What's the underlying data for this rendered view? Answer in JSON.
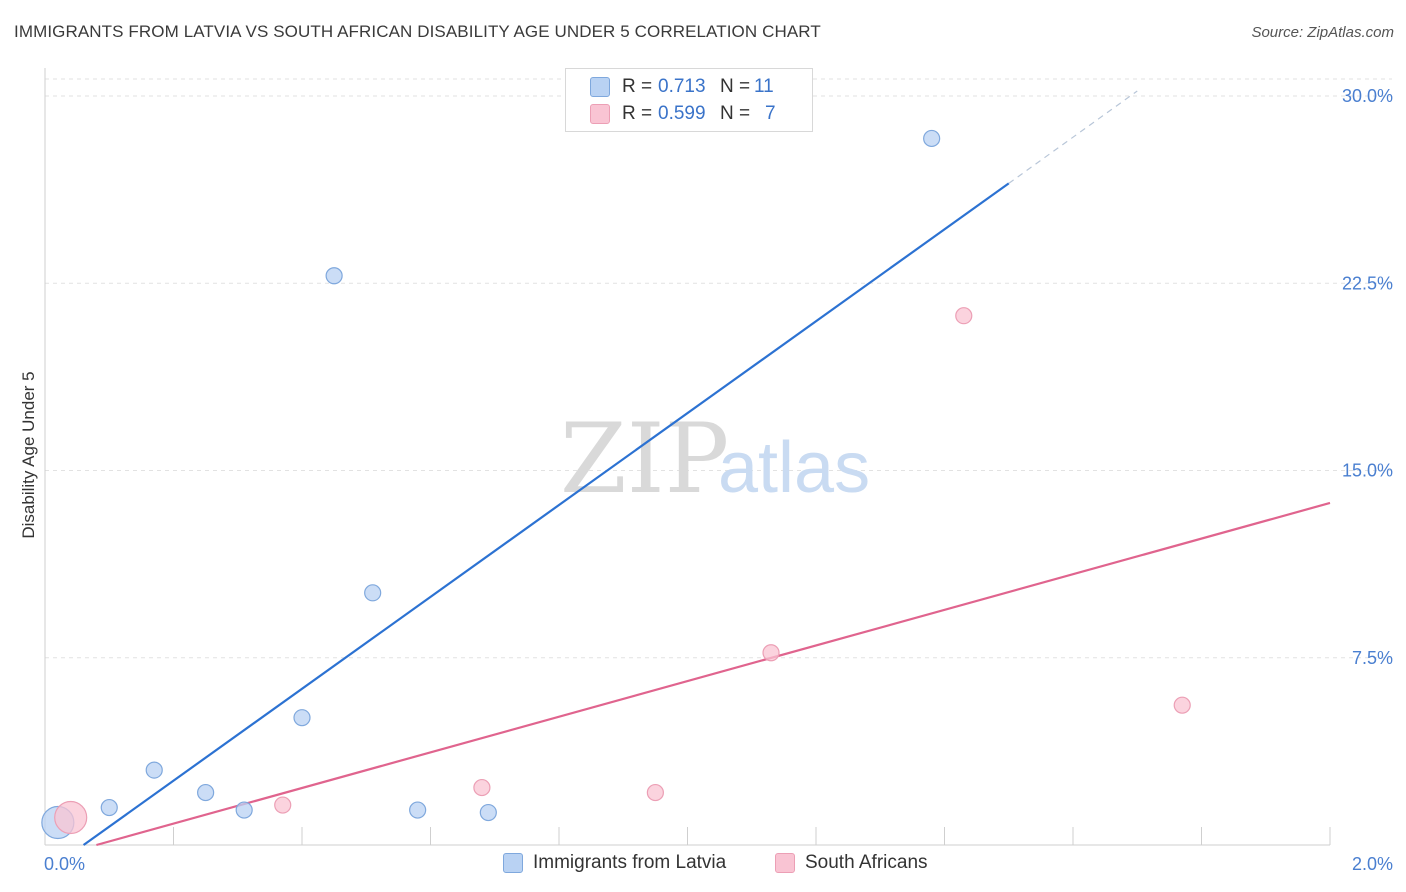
{
  "header": {
    "title": "IMMIGRANTS FROM LATVIA VS SOUTH AFRICAN DISABILITY AGE UNDER 5 CORRELATION CHART",
    "source": "Source: ZipAtlas.com"
  },
  "watermark": "ZIPatlas",
  "colors": {
    "blue_fill": "#b9d2f3",
    "blue_stroke": "#7fa8dd",
    "blue_line": "#2c72d2",
    "pink_fill": "#f9c4d3",
    "pink_stroke": "#ec9fb5",
    "pink_line": "#e0648e",
    "tick_text": "#4a7fd0",
    "grid": "#e2e2e2"
  },
  "legend_top": [
    {
      "r_label": "R =",
      "r_value": "0.713",
      "n_label": "N =",
      "n_value": "11",
      "color": "#b9d2f3",
      "border": "#7fa8dd"
    },
    {
      "r_label": "R =",
      "r_value": "0.599",
      "n_label": "N =",
      "n_value": "7",
      "color": "#f9c4d3",
      "border": "#ec9fb5"
    }
  ],
  "legend_bottom": [
    {
      "label": "Immigrants from Latvia",
      "color": "#b9d2f3",
      "border": "#7fa8dd"
    },
    {
      "label": "South Africans",
      "color": "#f9c4d3",
      "border": "#ec9fb5"
    }
  ],
  "chart_data": {
    "type": "scatter",
    "title": "IMMIGRANTS FROM LATVIA VS SOUTH AFRICAN DISABILITY AGE UNDER 5 CORRELATION CHART",
    "xlabel": "",
    "ylabel": "Disability Age Under 5",
    "xlim": [
      0.0,
      2.0
    ],
    "ylim": [
      0.0,
      30.0
    ],
    "x_tick_labels": [
      "0.0%",
      "2.0%"
    ],
    "y_ticks": [
      7.5,
      15.0,
      22.5,
      30.0
    ],
    "y_tick_labels": [
      "7.5%",
      "15.0%",
      "22.5%",
      "30.0%"
    ],
    "series": [
      {
        "name": "Immigrants from Latvia",
        "color": "#b9d2f3",
        "points": [
          {
            "x": 0.02,
            "y": 0.9,
            "size": "large"
          },
          {
            "x": 0.1,
            "y": 1.5
          },
          {
            "x": 0.17,
            "y": 3.0
          },
          {
            "x": 0.25,
            "y": 2.1
          },
          {
            "x": 0.31,
            "y": 1.4
          },
          {
            "x": 0.4,
            "y": 5.1
          },
          {
            "x": 0.45,
            "y": 22.8
          },
          {
            "x": 0.51,
            "y": 10.1
          },
          {
            "x": 0.58,
            "y": 1.4
          },
          {
            "x": 0.69,
            "y": 1.3
          },
          {
            "x": 1.38,
            "y": 28.3
          }
        ],
        "trend": {
          "x0": 0.06,
          "y0": 0.0,
          "x1": 1.5,
          "y1": 26.5,
          "dash_x1": 1.7,
          "dash_y1": 30.2
        }
      },
      {
        "name": "South Africans",
        "color": "#f9c4d3",
        "points": [
          {
            "x": 0.04,
            "y": 1.1,
            "size": "large"
          },
          {
            "x": 0.37,
            "y": 1.6
          },
          {
            "x": 0.68,
            "y": 2.3
          },
          {
            "x": 0.95,
            "y": 2.1
          },
          {
            "x": 1.13,
            "y": 7.7
          },
          {
            "x": 1.43,
            "y": 21.2
          },
          {
            "x": 1.77,
            "y": 5.6
          }
        ],
        "trend": {
          "x0": 0.08,
          "y0": 0.0,
          "x1": 2.0,
          "y1": 13.7
        }
      }
    ]
  }
}
